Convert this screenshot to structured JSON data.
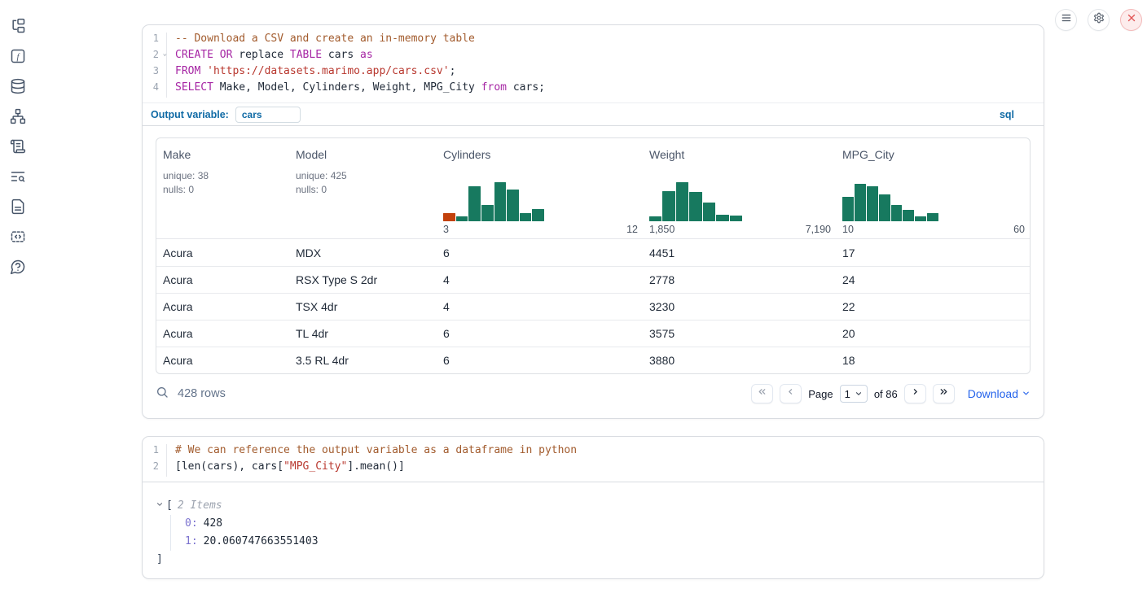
{
  "colors": {
    "hist_green": "#17795f",
    "hist_orange": "#c2410c",
    "accent_blue": "#0f6aa5",
    "link_blue": "#2563eb",
    "close_red": "#e25555"
  },
  "sidebar": {
    "icons": [
      "file-tree",
      "functions",
      "database",
      "dependency-graph",
      "logs",
      "trace-search",
      "documentation",
      "snippets",
      "help"
    ]
  },
  "topbar": {
    "icons": [
      "menu",
      "settings",
      "shutdown"
    ]
  },
  "sql_cell": {
    "language_badge": "sql",
    "output_variable_label": "Output variable:",
    "output_variable_value": "cars",
    "lines": [
      {
        "number": "1",
        "foldable": false,
        "tokens": [
          {
            "t": "-- Download a CSV and create an in-memory table",
            "c": "comment"
          }
        ]
      },
      {
        "number": "2",
        "foldable": true,
        "tokens": [
          {
            "t": "CREATE",
            "c": "kw"
          },
          {
            "t": " ",
            "c": "p"
          },
          {
            "t": "OR",
            "c": "kw"
          },
          {
            "t": " replace ",
            "c": "p"
          },
          {
            "t": "TABLE",
            "c": "kw"
          },
          {
            "t": " cars ",
            "c": "p"
          },
          {
            "t": "as",
            "c": "kw"
          }
        ]
      },
      {
        "number": "3",
        "foldable": false,
        "tokens": [
          {
            "t": "FROM",
            "c": "kw"
          },
          {
            "t": " ",
            "c": "p"
          },
          {
            "t": "'https://datasets.marimo.app/cars.csv'",
            "c": "str"
          },
          {
            "t": ";",
            "c": "p"
          }
        ]
      },
      {
        "number": "4",
        "foldable": false,
        "tokens": [
          {
            "t": "SELECT",
            "c": "kw"
          },
          {
            "t": " Make, Model, Cylinders, Weight, MPG_City ",
            "c": "p"
          },
          {
            "t": "from",
            "c": "kw"
          },
          {
            "t": " cars;",
            "c": "p"
          }
        ]
      }
    ]
  },
  "table": {
    "columns": [
      {
        "name": "Make",
        "stats": [
          "unique: 38",
          "nulls: 0"
        ]
      },
      {
        "name": "Model",
        "stats": [
          "unique: 425",
          "nulls: 0"
        ]
      },
      {
        "name": "Cylinders",
        "histogram": {
          "min_label": "3",
          "max_label": "12",
          "bars": [
            {
              "h": 0.2,
              "color": "#c2410c"
            },
            {
              "h": 0.12
            },
            {
              "h": 0.85
            },
            {
              "h": 0.4
            },
            {
              "h": 0.95
            },
            {
              "h": 0.78
            },
            {
              "h": 0.2
            },
            {
              "h": 0.3
            }
          ]
        }
      },
      {
        "name": "Weight",
        "histogram": {
          "min_label": "1,850",
          "max_label": "7,190",
          "bars": [
            {
              "h": 0.12
            },
            {
              "h": 0.74
            },
            {
              "h": 0.95
            },
            {
              "h": 0.72
            },
            {
              "h": 0.45
            },
            {
              "h": 0.16
            },
            {
              "h": 0.13
            }
          ]
        }
      },
      {
        "name": "MPG_City",
        "histogram": {
          "min_label": "10",
          "max_label": "60",
          "bars": [
            {
              "h": 0.6
            },
            {
              "h": 0.92
            },
            {
              "h": 0.86
            },
            {
              "h": 0.66
            },
            {
              "h": 0.4
            },
            {
              "h": 0.28
            },
            {
              "h": 0.12
            },
            {
              "h": 0.2
            }
          ]
        }
      }
    ],
    "rows": [
      [
        "Acura",
        "MDX",
        "6",
        "4451",
        "17"
      ],
      [
        "Acura",
        "RSX Type S 2dr",
        "4",
        "2778",
        "24"
      ],
      [
        "Acura",
        "TSX 4dr",
        "4",
        "3230",
        "22"
      ],
      [
        "Acura",
        "TL 4dr",
        "6",
        "3575",
        "20"
      ],
      [
        "Acura",
        "3.5 RL 4dr",
        "6",
        "3880",
        "18"
      ]
    ],
    "footer": {
      "row_count": "428 rows",
      "page_label": "Page",
      "page_value": "1",
      "total_label": "of 86",
      "download_label": "Download"
    }
  },
  "python_cell": {
    "lines": [
      {
        "number": "1",
        "foldable": false,
        "tokens": [
          {
            "t": "# We can reference the output variable as a dataframe in python",
            "c": "comment"
          }
        ]
      },
      {
        "number": "2",
        "foldable": false,
        "tokens": [
          {
            "t": "[len(cars), cars[",
            "c": "p"
          },
          {
            "t": "\"MPG_City\"",
            "c": "str"
          },
          {
            "t": "].mean()]",
            "c": "p"
          }
        ]
      }
    ]
  },
  "python_output": {
    "open_bracket": "[",
    "items_count_label": "2 Items",
    "items": [
      {
        "key": "0:",
        "value": "428"
      },
      {
        "key": "1:",
        "value": "20.060747663551403"
      }
    ],
    "close_bracket": "]"
  }
}
